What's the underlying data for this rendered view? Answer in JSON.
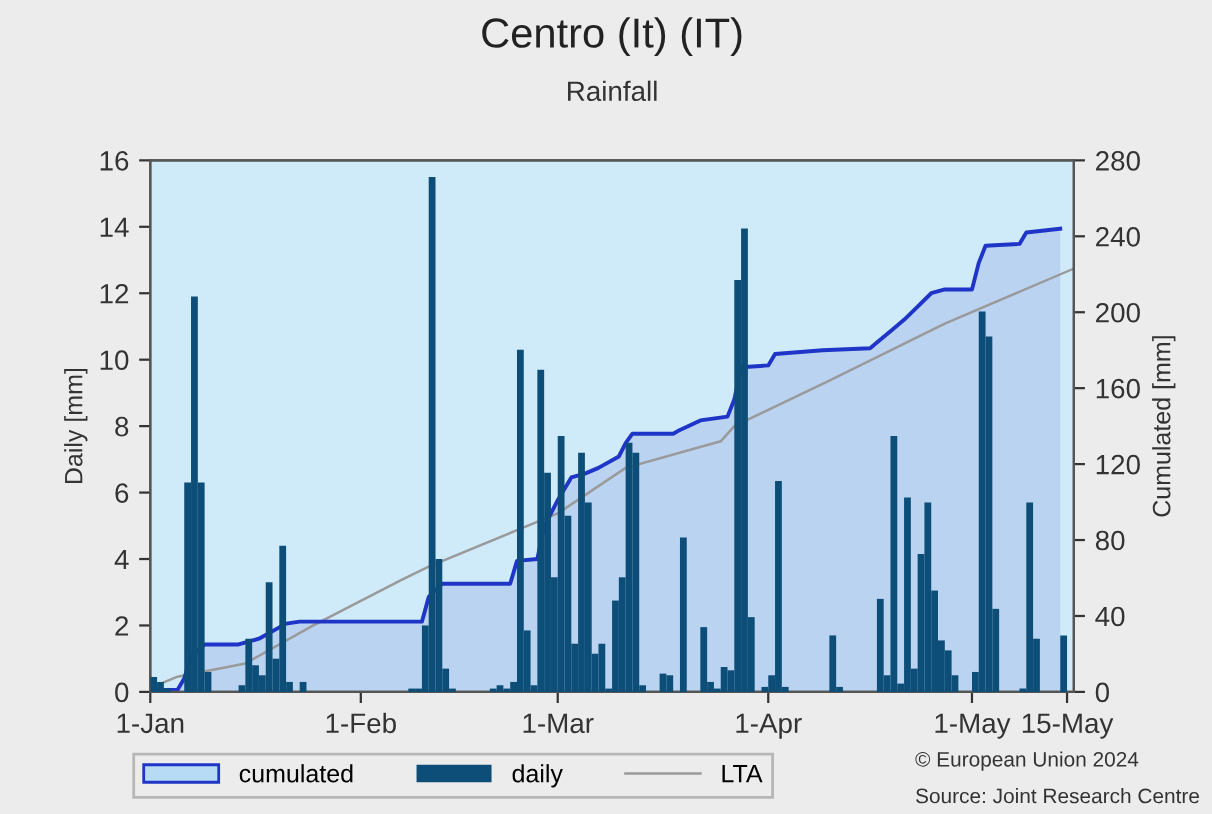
{
  "chart_data": {
    "type": "bar",
    "title": "Centro (It) (IT)",
    "subtitle": "Rainfall",
    "ylabel": "Daily [mm]",
    "y2label": "Cumulated [mm]",
    "xlim": [
      "2024-01-01",
      "2024-05-16"
    ],
    "xticks": [
      {
        "value": "2024-01-01",
        "label": "1-Jan"
      },
      {
        "value": "2024-02-01",
        "label": "1-Feb"
      },
      {
        "value": "2024-03-01",
        "label": "1-Mar"
      },
      {
        "value": "2024-04-01",
        "label": "1-Apr"
      },
      {
        "value": "2024-05-01",
        "label": "1-May"
      },
      {
        "value": "2024-05-15",
        "label": "15-May"
      }
    ],
    "ylim": [
      0,
      16
    ],
    "yticks": [
      0,
      2,
      4,
      6,
      8,
      10,
      12,
      14,
      16
    ],
    "y2lim": [
      0,
      280
    ],
    "y2ticks": [
      0,
      40,
      80,
      120,
      160,
      200,
      240,
      280
    ],
    "grid": false,
    "legend": "bottom",
    "series": [
      {
        "name": "cumulated",
        "type": "area",
        "axis": "y2",
        "color": "#1f35c8",
        "x": [
          "2024-01-01",
          "2024-01-05",
          "2024-01-06",
          "2024-01-07",
          "2024-01-09",
          "2024-01-14",
          "2024-01-17",
          "2024-01-20",
          "2024-01-21",
          "2024-01-23",
          "2024-02-10",
          "2024-02-11",
          "2024-02-13",
          "2024-02-23",
          "2024-02-24",
          "2024-02-27",
          "2024-02-28",
          "2024-03-01",
          "2024-03-03",
          "2024-03-05",
          "2024-03-07",
          "2024-03-10",
          "2024-03-11",
          "2024-03-12",
          "2024-03-18",
          "2024-03-19",
          "2024-03-22",
          "2024-03-26",
          "2024-03-27",
          "2024-03-28",
          "2024-04-01",
          "2024-04-02",
          "2024-04-09",
          "2024-04-16",
          "2024-04-17",
          "2024-04-19",
          "2024-04-21",
          "2024-04-23",
          "2024-04-25",
          "2024-04-27",
          "2024-05-01",
          "2024-05-02",
          "2024-05-03",
          "2024-05-08",
          "2024-05-09",
          "2024-05-14"
        ],
        "values": [
          1,
          1,
          7,
          19,
          25,
          25,
          28,
          34,
          36,
          37,
          37,
          50,
          57,
          57,
          69,
          70,
          87,
          101,
          113,
          115,
          118,
          124,
          131,
          136,
          136,
          138,
          143,
          145,
          154,
          171,
          172,
          178,
          180,
          181,
          184,
          190,
          196,
          203,
          210,
          212,
          212,
          226,
          235,
          236,
          242,
          244
        ]
      },
      {
        "name": "daily",
        "color": "#0c4e78",
        "x": [
          "2024-01-01",
          "2024-01-02",
          "2024-01-03",
          "2024-01-06",
          "2024-01-07",
          "2024-01-08",
          "2024-01-09",
          "2024-01-14",
          "2024-01-15",
          "2024-01-16",
          "2024-01-17",
          "2024-01-18",
          "2024-01-19",
          "2024-01-20",
          "2024-01-21",
          "2024-01-23",
          "2024-02-08",
          "2024-02-09",
          "2024-02-10",
          "2024-02-11",
          "2024-02-12",
          "2024-02-13",
          "2024-02-14",
          "2024-02-20",
          "2024-02-21",
          "2024-02-22",
          "2024-02-23",
          "2024-02-24",
          "2024-02-25",
          "2024-02-26",
          "2024-02-27",
          "2024-02-28",
          "2024-02-29",
          "2024-03-01",
          "2024-03-02",
          "2024-03-03",
          "2024-03-04",
          "2024-03-05",
          "2024-03-06",
          "2024-03-07",
          "2024-03-08",
          "2024-03-09",
          "2024-03-10",
          "2024-03-11",
          "2024-03-12",
          "2024-03-13",
          "2024-03-16",
          "2024-03-17",
          "2024-03-19",
          "2024-03-22",
          "2024-03-23",
          "2024-03-24",
          "2024-03-25",
          "2024-03-26",
          "2024-03-27",
          "2024-03-28",
          "2024-03-29",
          "2024-03-31",
          "2024-04-01",
          "2024-04-02",
          "2024-04-03",
          "2024-04-10",
          "2024-04-11",
          "2024-04-17",
          "2024-04-18",
          "2024-04-19",
          "2024-04-20",
          "2024-04-21",
          "2024-04-22",
          "2024-04-23",
          "2024-04-24",
          "2024-04-25",
          "2024-04-26",
          "2024-04-27",
          "2024-04-28",
          "2024-05-01",
          "2024-05-02",
          "2024-05-03",
          "2024-05-04",
          "2024-05-08",
          "2024-05-09",
          "2024-05-10",
          "2024-05-14"
        ],
        "values": [
          0.45,
          0.3,
          0.1,
          6.3,
          11.9,
          6.3,
          0.6,
          0.2,
          1.6,
          0.8,
          0.5,
          3.3,
          1.0,
          4.4,
          0.3,
          0.3,
          0.1,
          0.1,
          2.0,
          15.5,
          4.0,
          0.7,
          0.1,
          0.1,
          0.2,
          0.1,
          0.3,
          10.3,
          1.85,
          0.2,
          9.7,
          6.6,
          3.45,
          7.7,
          5.3,
          1.45,
          7.2,
          5.7,
          1.15,
          1.45,
          0.1,
          2.75,
          3.45,
          7.5,
          7.2,
          0.2,
          0.55,
          0.5,
          4.65,
          1.95,
          0.3,
          0.1,
          0.75,
          0.65,
          12.4,
          13.95,
          2.25,
          0.15,
          0.5,
          6.35,
          0.15,
          1.7,
          0.15,
          2.8,
          0.5,
          7.7,
          0.25,
          5.85,
          0.7,
          4.15,
          5.7,
          3.05,
          1.55,
          1.25,
          0.5,
          0.6,
          11.45,
          10.7,
          2.5,
          0.1,
          5.7,
          1.6,
          1.7
        ]
      },
      {
        "name": "LTA",
        "type": "line",
        "axis": "y2",
        "color": "#9a9a9a",
        "x": [
          "2024-01-01",
          "2024-01-05",
          "2024-01-15",
          "2024-01-25",
          "2024-02-07",
          "2024-02-11",
          "2024-03-01",
          "2024-03-11",
          "2024-03-25",
          "2024-03-27",
          "2024-04-10",
          "2024-04-27",
          "2024-05-16"
        ],
        "values": [
          2,
          8,
          15,
          35,
          59,
          66,
          94,
          118,
          132,
          140,
          164,
          194,
          223
        ]
      }
    ],
    "annotations": [
      "© European Union 2024",
      "Source: Joint Research Centre"
    ]
  }
}
